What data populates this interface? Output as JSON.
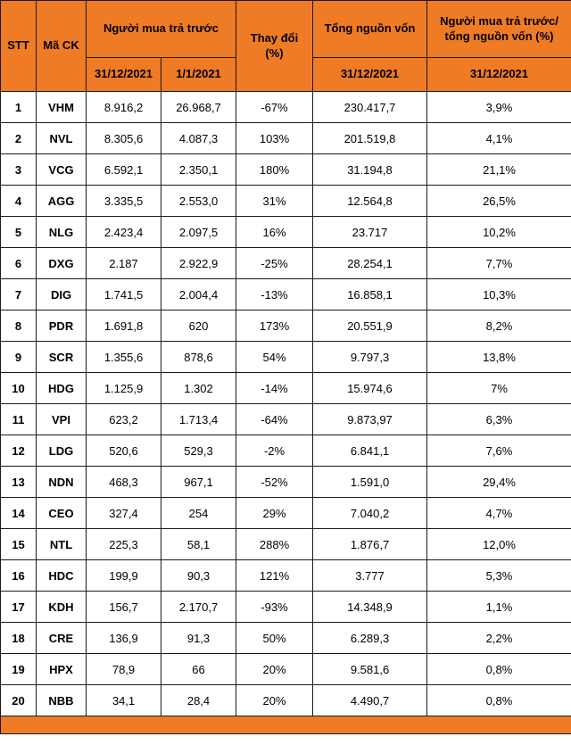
{
  "colors": {
    "accent_orange": "#ef7b25",
    "grid_border": "#1a1a1a",
    "body_background": "#ffffff",
    "text": "#000000"
  },
  "table": {
    "header": {
      "stt": "STT",
      "ma_ck": "Mã CK",
      "nguoi_mua_tra_truoc": "Người mua trả trước",
      "thay_doi": "Thay đổi (%)",
      "tong_nguon_von": "Tổng nguồn vốn",
      "ratio": "Người mua trả trước/ tổng nguồn vốn (%)",
      "sub_prepaid_1": "31/12/2021",
      "sub_prepaid_2": "1/1/2021",
      "sub_total": "31/12/2021",
      "sub_ratio": "31/12/2021"
    },
    "rows": [
      {
        "stt": "1",
        "code": "VHM",
        "v1": "8.916,2",
        "v2": "26.968,7",
        "change": "-67%",
        "total": "230.417,7",
        "ratio": "3,9%"
      },
      {
        "stt": "2",
        "code": "NVL",
        "v1": "8.305,6",
        "v2": "4.087,3",
        "change": "103%",
        "total": "201.519,8",
        "ratio": "4,1%"
      },
      {
        "stt": "3",
        "code": "VCG",
        "v1": "6.592,1",
        "v2": "2.350,1",
        "change": "180%",
        "total": "31.194,8",
        "ratio": "21,1%"
      },
      {
        "stt": "4",
        "code": "AGG",
        "v1": "3.335,5",
        "v2": "2.553,0",
        "change": "31%",
        "total": "12.564,8",
        "ratio": "26,5%"
      },
      {
        "stt": "5",
        "code": "NLG",
        "v1": "2.423,4",
        "v2": "2.097,5",
        "change": "16%",
        "total": "23.717",
        "ratio": "10,2%"
      },
      {
        "stt": "6",
        "code": "DXG",
        "v1": "2.187",
        "v2": "2.922,9",
        "change": "-25%",
        "total": "28.254,1",
        "ratio": "7,7%"
      },
      {
        "stt": "7",
        "code": "DIG",
        "v1": "1.741,5",
        "v2": "2.004,4",
        "change": "-13%",
        "total": "16.858,1",
        "ratio": "10,3%"
      },
      {
        "stt": "8",
        "code": "PDR",
        "v1": "1.691,8",
        "v2": "620",
        "change": "173%",
        "total": "20.551,9",
        "ratio": "8,2%"
      },
      {
        "stt": "9",
        "code": "SCR",
        "v1": "1.355,6",
        "v2": "878,6",
        "change": "54%",
        "total": "9.797,3",
        "ratio": "13,8%"
      },
      {
        "stt": "10",
        "code": "HDG",
        "v1": "1.125,9",
        "v2": "1.302",
        "change": "-14%",
        "total": "15.974,6",
        "ratio": "7%"
      },
      {
        "stt": "11",
        "code": "VPI",
        "v1": "623,2",
        "v2": "1.713,4",
        "change": "-64%",
        "total": "9.873,97",
        "ratio": "6,3%"
      },
      {
        "stt": "12",
        "code": "LDG",
        "v1": "520,6",
        "v2": "529,3",
        "change": "-2%",
        "total": "6.841,1",
        "ratio": "7,6%"
      },
      {
        "stt": "13",
        "code": "NDN",
        "v1": "468,3",
        "v2": "967,1",
        "change": "-52%",
        "total": "1.591,0",
        "ratio": "29,4%"
      },
      {
        "stt": "14",
        "code": "CEO",
        "v1": "327,4",
        "v2": "254",
        "change": "29%",
        "total": "7.040,2",
        "ratio": "4,7%"
      },
      {
        "stt": "15",
        "code": "NTL",
        "v1": "225,3",
        "v2": "58,1",
        "change": "288%",
        "total": "1.876,7",
        "ratio": "12,0%"
      },
      {
        "stt": "16",
        "code": "HDC",
        "v1": "199,9",
        "v2": "90,3",
        "change": "121%",
        "total": "3.777",
        "ratio": "5,3%"
      },
      {
        "stt": "17",
        "code": "KDH",
        "v1": "156,7",
        "v2": "2.170,7",
        "change": "-93%",
        "total": "14.348,9",
        "ratio": "1,1%"
      },
      {
        "stt": "18",
        "code": "CRE",
        "v1": "136,9",
        "v2": "91,3",
        "change": "50%",
        "total": "6.289,3",
        "ratio": "2,2%"
      },
      {
        "stt": "19",
        "code": "HPX",
        "v1": "78,9",
        "v2": "66",
        "change": "20%",
        "total": "9.581,6",
        "ratio": "0,8%"
      },
      {
        "stt": "20",
        "code": "NBB",
        "v1": "34,1",
        "v2": "28,4",
        "change": "20%",
        "total": "4.490,7",
        "ratio": "0,8%"
      }
    ]
  }
}
